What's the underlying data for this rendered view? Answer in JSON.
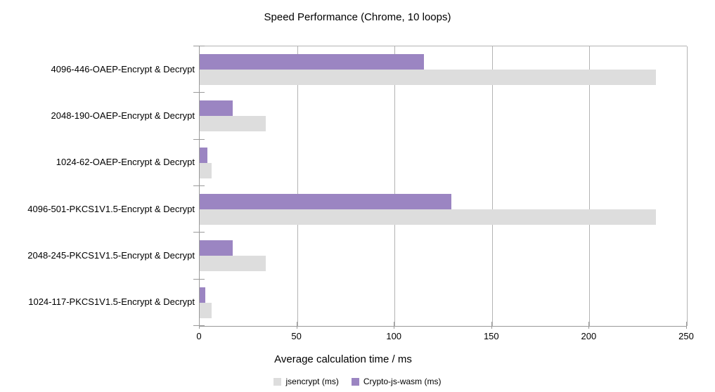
{
  "title": "Speed Performance (Chrome, 10 loops)",
  "chart_data": {
    "type": "bar",
    "orientation": "horizontal",
    "title": "Speed Performance (Chrome, 10 loops)",
    "categories": [
      "4096-446-OAEP-Encrypt & Decrypt",
      "2048-190-OAEP-Encrypt & Decrypt",
      "1024-62-OAEP-Encrypt & Decrypt",
      "4096-501-PKCS1V1.5-Encrypt & Decrypt",
      "2048-245-PKCS1V1.5-Encrypt & Decrypt",
      "1024-117-PKCS1V1.5-Encrypt & Decrypt"
    ],
    "series": [
      {
        "name": "jsencrypt (ms)",
        "color": "#dddddd",
        "values": [
          234,
          34,
          6,
          234,
          34,
          6
        ]
      },
      {
        "name": "Crypto-js-wasm (ms)",
        "color": "#9b85c2",
        "values": [
          115,
          17,
          4,
          129,
          17,
          3
        ]
      }
    ],
    "xlabel": "Average calculation time / ms",
    "xlim": [
      0,
      250
    ],
    "xticks": [
      0,
      50,
      100,
      150,
      200,
      250
    ],
    "grid": true,
    "legend_position": "bottom"
  },
  "colors": {
    "jsencrypt_bar": "#dddddd",
    "crypto_js_wasm_bar": "#9b85c2",
    "gridline": "#b3b3b3",
    "axis_line": "#9a9a9a",
    "background": "#ffffff",
    "text": "#000000"
  }
}
